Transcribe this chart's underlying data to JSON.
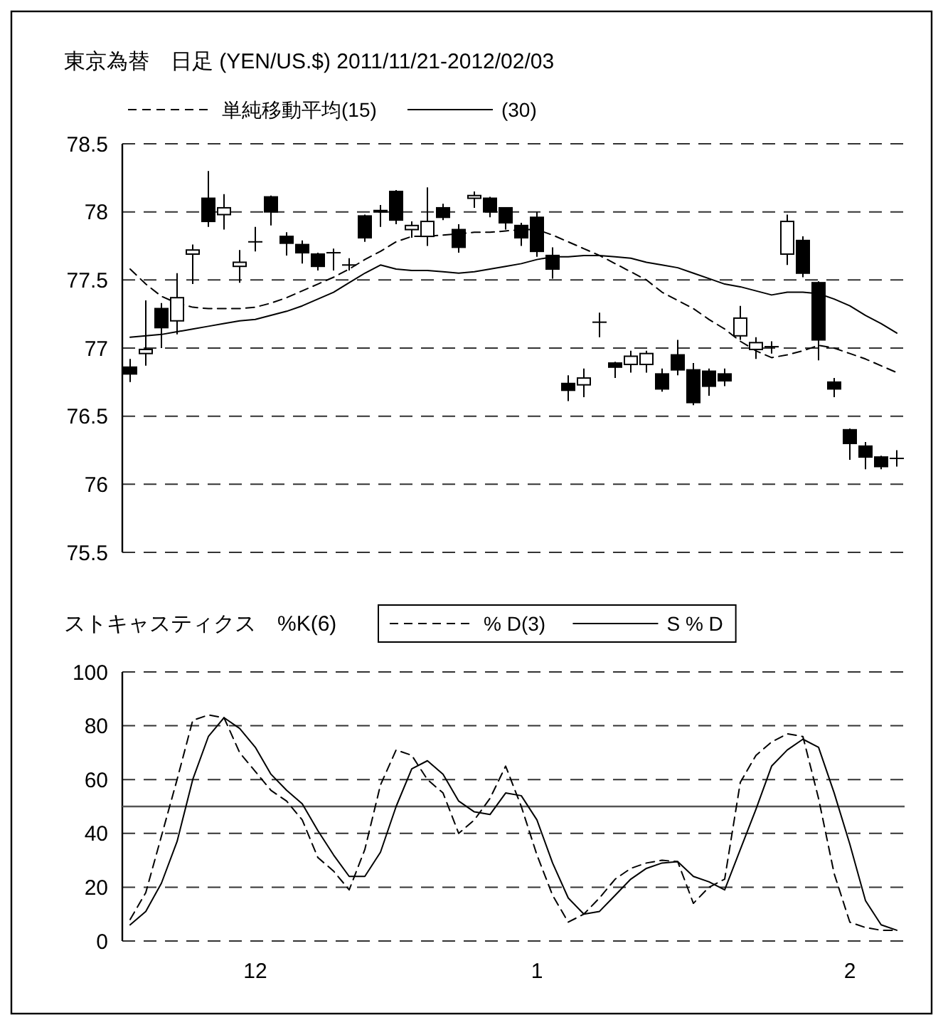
{
  "chart_data": [
    {
      "type": "candlestick",
      "title": "東京為替　日足 (YEN/US.$) 2011/11/21-2012/02/03",
      "grid": "y",
      "legend": "top",
      "categories": [
        null,
        null,
        null,
        null,
        null,
        null,
        null,
        null,
        null,
        null,
        null,
        null,
        null,
        null,
        null,
        null,
        null,
        null,
        null,
        null,
        null,
        null,
        null,
        null,
        null,
        null,
        null,
        null,
        null,
        null,
        null,
        null,
        null,
        null,
        null,
        null,
        null,
        null,
        null,
        null,
        null,
        null,
        null,
        null,
        null,
        null,
        null,
        null,
        null,
        null
      ],
      "ylim": [
        75.5,
        78.5
      ],
      "yticks": [
        75.5,
        76,
        76.5,
        77,
        77.5,
        78,
        78.5
      ],
      "ohlc": [
        [
          76.86,
          76.92,
          76.75,
          76.81
        ],
        [
          76.96,
          77.35,
          76.87,
          76.99
        ],
        [
          77.29,
          77.33,
          77.0,
          77.15
        ],
        [
          77.2,
          77.55,
          77.1,
          77.37
        ],
        [
          77.69,
          77.76,
          77.47,
          77.72
        ],
        [
          78.1,
          78.3,
          77.89,
          77.93
        ],
        [
          77.98,
          78.13,
          77.87,
          78.03
        ],
        [
          77.6,
          77.72,
          77.48,
          77.63
        ],
        [
          77.78,
          77.89,
          77.71,
          77.78
        ],
        [
          78.11,
          78.12,
          77.9,
          78.0
        ],
        [
          77.82,
          77.85,
          77.68,
          77.77
        ],
        [
          77.76,
          77.79,
          77.62,
          77.7
        ],
        [
          77.69,
          77.7,
          77.57,
          77.6
        ],
        [
          77.7,
          77.73,
          77.57,
          77.7
        ],
        [
          77.61,
          77.66,
          77.57,
          77.61
        ],
        [
          77.97,
          77.98,
          77.78,
          77.81
        ],
        [
          78.0,
          78.05,
          77.89,
          78.01
        ],
        [
          78.15,
          78.16,
          77.91,
          77.94
        ],
        [
          77.87,
          77.93,
          77.81,
          77.9
        ],
        [
          77.82,
          78.18,
          77.75,
          77.93
        ],
        [
          78.03,
          78.06,
          77.94,
          77.96
        ],
        [
          77.87,
          77.91,
          77.7,
          77.74
        ],
        [
          78.1,
          78.15,
          78.03,
          78.12
        ],
        [
          78.1,
          78.11,
          77.96,
          78.0
        ],
        [
          78.03,
          78.03,
          77.87,
          77.92
        ],
        [
          77.9,
          77.92,
          77.75,
          77.81
        ],
        [
          77.96,
          78.0,
          77.67,
          77.71
        ],
        [
          77.68,
          77.74,
          77.51,
          77.58
        ],
        [
          76.74,
          76.8,
          76.61,
          76.69
        ],
        [
          76.73,
          76.85,
          76.64,
          76.78
        ],
        [
          77.19,
          77.26,
          77.08,
          77.19
        ],
        [
          76.89,
          76.9,
          76.78,
          76.86
        ],
        [
          76.88,
          76.98,
          76.82,
          76.94
        ],
        [
          76.88,
          76.98,
          76.82,
          76.96
        ],
        [
          76.81,
          76.85,
          76.68,
          76.7
        ],
        [
          76.95,
          77.06,
          76.8,
          76.84
        ],
        [
          76.84,
          76.89,
          76.58,
          76.6
        ],
        [
          76.83,
          76.85,
          76.65,
          76.72
        ],
        [
          76.81,
          76.85,
          76.72,
          76.76
        ],
        [
          77.09,
          77.31,
          77.06,
          77.22
        ],
        [
          76.99,
          77.08,
          76.92,
          77.04
        ],
        [
          77.01,
          77.05,
          76.96,
          77.01
        ],
        [
          77.69,
          77.98,
          77.61,
          77.93
        ],
        [
          77.79,
          77.82,
          77.52,
          77.55
        ],
        [
          77.48,
          77.49,
          76.91,
          77.06
        ],
        [
          76.75,
          76.78,
          76.64,
          76.7
        ],
        [
          76.4,
          76.41,
          76.18,
          76.3
        ],
        [
          76.28,
          76.31,
          76.11,
          76.2
        ],
        [
          76.2,
          76.21,
          76.11,
          76.13
        ],
        [
          76.19,
          76.25,
          76.13,
          76.19
        ]
      ],
      "series": [
        {
          "type": "line",
          "name": "単純移動平均(15)",
          "color": "#000000",
          "line_style": "dashed",
          "values": [
            77.58,
            77.47,
            77.38,
            77.33,
            77.3,
            77.29,
            77.29,
            77.29,
            77.3,
            77.33,
            77.37,
            77.42,
            77.47,
            77.52,
            77.58,
            77.65,
            77.71,
            77.78,
            77.82,
            77.82,
            77.83,
            77.84,
            77.85,
            77.85,
            77.86,
            77.87,
            77.87,
            77.83,
            77.78,
            77.73,
            77.68,
            77.62,
            77.56,
            77.5,
            77.41,
            77.35,
            77.29,
            77.21,
            77.14,
            77.05,
            76.98,
            76.93,
            76.95,
            76.98,
            77.02,
            77.0,
            76.96,
            76.92,
            76.87,
            76.82
          ]
        },
        {
          "type": "line",
          "name": "(30)",
          "color": "#000000",
          "line_style": "solid",
          "values": [
            77.08,
            77.09,
            77.1,
            77.12,
            77.14,
            77.16,
            77.18,
            77.2,
            77.21,
            77.24,
            77.27,
            77.31,
            77.36,
            77.41,
            77.48,
            77.55,
            77.61,
            77.58,
            77.57,
            77.57,
            77.56,
            77.55,
            77.56,
            77.58,
            77.6,
            77.62,
            77.65,
            77.67,
            77.67,
            77.68,
            77.68,
            77.67,
            77.66,
            77.63,
            77.61,
            77.59,
            77.55,
            77.51,
            77.47,
            77.45,
            77.42,
            77.39,
            77.41,
            77.41,
            77.4,
            77.36,
            77.31,
            77.24,
            77.18,
            77.11
          ]
        }
      ]
    },
    {
      "type": "line",
      "title": "ストキャスティクス　%K(6)",
      "grid": "y",
      "legend": "top",
      "categories": [
        null,
        null,
        null,
        null,
        null,
        null,
        null,
        null,
        "12",
        null,
        null,
        null,
        null,
        null,
        null,
        null,
        null,
        null,
        null,
        null,
        null,
        null,
        null,
        null,
        null,
        null,
        "1",
        null,
        null,
        null,
        null,
        null,
        null,
        null,
        null,
        null,
        null,
        null,
        null,
        null,
        null,
        null,
        null,
        null,
        null,
        null,
        "2",
        null,
        null,
        null
      ],
      "ylim": [
        0,
        100
      ],
      "yticks": [
        0,
        20,
        40,
        60,
        80,
        100
      ],
      "ref_lines": [
        {
          "axis": "y",
          "value": 50,
          "color": "#555555"
        }
      ],
      "series": [
        {
          "name": "% D(3)",
          "color": "#000000",
          "line_style": "dashed",
          "values": [
            8,
            18,
            39,
            60,
            82,
            84,
            83,
            70,
            63,
            56,
            52,
            45,
            31,
            26,
            19,
            34,
            58,
            71,
            69,
            60,
            55,
            40,
            45,
            53,
            65,
            50,
            32,
            17,
            7,
            10,
            16,
            23,
            27,
            29,
            30,
            29.5,
            14,
            20,
            23,
            59,
            69,
            74,
            77,
            76,
            53,
            25,
            7,
            5,
            4,
            4
          ]
        },
        {
          "name": "S % D",
          "color": "#000000",
          "line_style": "solid",
          "values": [
            6,
            11,
            21.5,
            37,
            60,
            76,
            83,
            79,
            72,
            62,
            56,
            51,
            41,
            32,
            24,
            24,
            33,
            50,
            64,
            67,
            62,
            52,
            48,
            47,
            55,
            54,
            45,
            29,
            16,
            10,
            11,
            17,
            23,
            27,
            29,
            29.5,
            24,
            22,
            19,
            34,
            49,
            65,
            71,
            75,
            72,
            55,
            36,
            15,
            6,
            4
          ]
        }
      ]
    }
  ]
}
